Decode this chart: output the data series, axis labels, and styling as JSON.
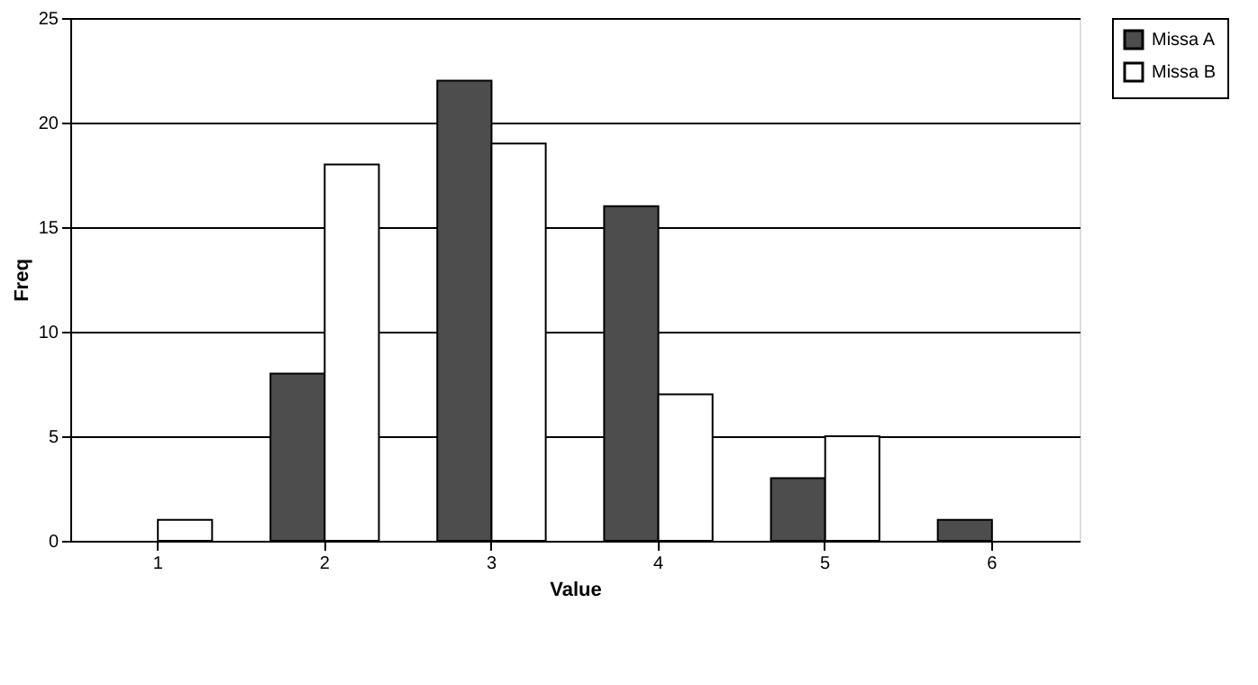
{
  "chart_data": {
    "type": "bar",
    "xlabel": "Value",
    "ylabel": "Freq",
    "categories": [
      "1",
      "2",
      "3",
      "4",
      "5",
      "6"
    ],
    "series": [
      {
        "name": "Missa A",
        "color": "#4d4d4d",
        "values": [
          0,
          8,
          22,
          16,
          3,
          1
        ]
      },
      {
        "name": "Missa B",
        "color": "#ffffff",
        "values": [
          1,
          18,
          19,
          7,
          5,
          0
        ]
      }
    ],
    "ylim": [
      0,
      25
    ],
    "yticks": [
      0,
      5,
      10,
      15,
      20,
      25
    ],
    "grid": "y",
    "legend": "right"
  }
}
